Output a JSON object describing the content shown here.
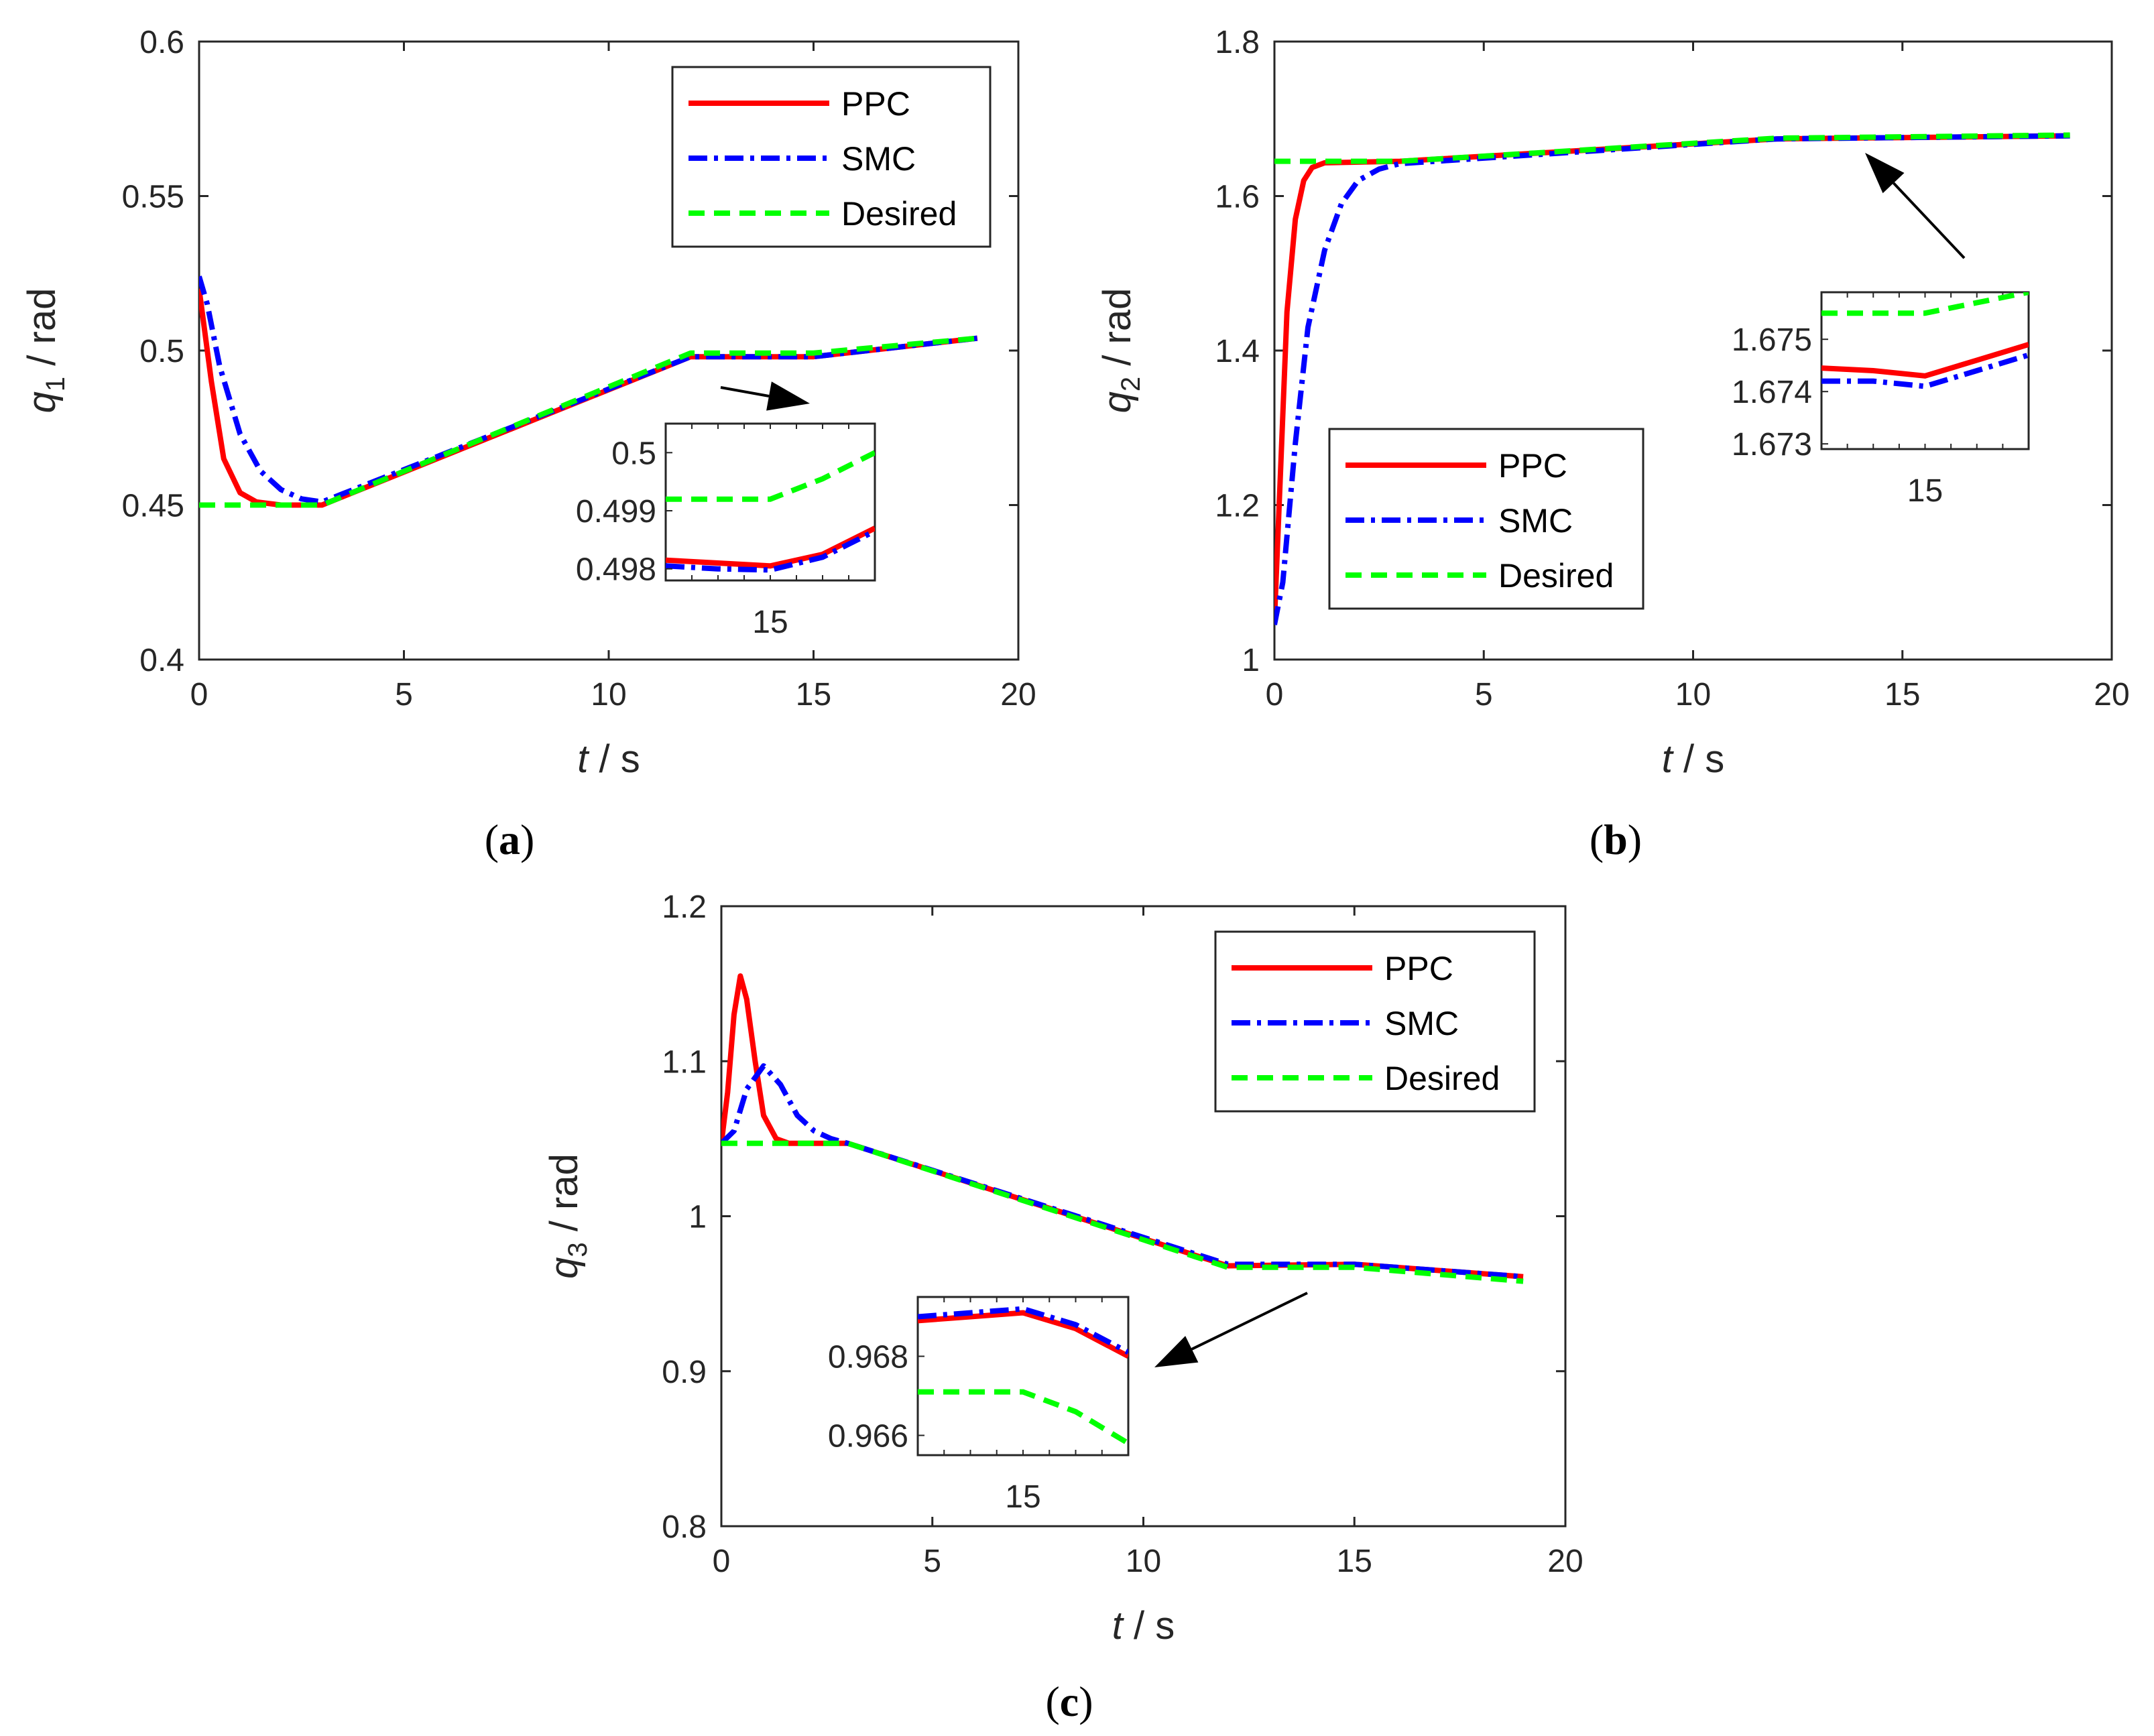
{
  "colors": {
    "PPC": "#ff0000",
    "SMC": "#0000ff",
    "Desired": "#00ff00",
    "axes": "#262626"
  },
  "chart_data": [
    {
      "type": "line",
      "panel_label": "a",
      "xlabel_var": "t",
      "xlabel_unit": "/ s",
      "ylabel_var": "q",
      "ylabel_sub": "1",
      "ylabel_unit": "/ rad",
      "xlim": [
        0,
        20
      ],
      "ylim": [
        0.4,
        0.6
      ],
      "xticks": [
        "0",
        "5",
        "10",
        "15",
        "20"
      ],
      "yticks": [
        "0.4",
        "0.45",
        "0.5",
        "0.55",
        "0.6"
      ],
      "legend_position": "top-right",
      "series": [
        {
          "name": "PPC",
          "x": [
            0,
            0.3,
            0.6,
            1.0,
            1.4,
            2,
            3,
            12,
            15,
            19
          ],
          "y": [
            0.52,
            0.49,
            0.465,
            0.454,
            0.451,
            0.45,
            0.45,
            0.498,
            0.498,
            0.504
          ]
        },
        {
          "name": "SMC",
          "x": [
            0,
            0.2,
            0.5,
            1.0,
            1.5,
            2,
            2.5,
            3,
            12,
            15,
            19
          ],
          "y": [
            0.524,
            0.515,
            0.495,
            0.473,
            0.461,
            0.455,
            0.452,
            0.451,
            0.498,
            0.498,
            0.504
          ]
        },
        {
          "name": "Desired",
          "x": [
            0,
            3,
            12,
            15,
            19
          ],
          "y": [
            0.45,
            0.45,
            0.4992,
            0.4992,
            0.504
          ]
        }
      ],
      "inset": {
        "xtick_label": "15",
        "yticks": [
          "0.498",
          "0.499",
          "0.5"
        ],
        "ylim": [
          0.4978,
          0.5005
        ],
        "series": [
          {
            "name": "PPC",
            "y": [
              0.49815,
              0.4981,
              0.49805,
              0.49825,
              0.4987
            ]
          },
          {
            "name": "SMC",
            "y": [
              0.49805,
              0.498,
              0.49798,
              0.4982,
              0.49865
            ]
          },
          {
            "name": "Desired",
            "y": [
              0.4992,
              0.4992,
              0.4992,
              0.49955,
              0.5
            ]
          }
        ]
      }
    },
    {
      "type": "line",
      "panel_label": "b",
      "xlabel_var": "t",
      "xlabel_unit": "/ s",
      "ylabel_var": "q",
      "ylabel_sub": "2",
      "ylabel_unit": "/ rad",
      "xlim": [
        0,
        20
      ],
      "ylim": [
        1,
        1.8
      ],
      "xticks": [
        "0",
        "5",
        "10",
        "15",
        "20"
      ],
      "yticks": [
        "1",
        "1.2",
        "1.4",
        "1.6",
        "1.8"
      ],
      "legend_position": "bottom-left",
      "series": [
        {
          "name": "PPC",
          "x": [
            0,
            0.15,
            0.3,
            0.5,
            0.7,
            0.9,
            1.2,
            3,
            12,
            19
          ],
          "y": [
            1.05,
            1.25,
            1.45,
            1.57,
            1.62,
            1.637,
            1.643,
            1.645,
            1.674,
            1.678
          ]
        },
        {
          "name": "SMC",
          "x": [
            0,
            0.2,
            0.5,
            0.8,
            1.2,
            1.6,
            2.0,
            2.5,
            3,
            12,
            19
          ],
          "y": [
            1.045,
            1.1,
            1.28,
            1.43,
            1.53,
            1.59,
            1.62,
            1.635,
            1.642,
            1.674,
            1.678
          ]
        },
        {
          "name": "Desired",
          "x": [
            0,
            3,
            12,
            19
          ],
          "y": [
            1.645,
            1.645,
            1.675,
            1.679
          ]
        }
      ],
      "inset": {
        "xtick_label": "15",
        "yticks": [
          "1.673",
          "1.674",
          "1.675"
        ],
        "ylim": [
          1.6729,
          1.6759
        ],
        "series": [
          {
            "name": "PPC",
            "y": [
              1.67445,
              1.6744,
              1.6743,
              1.6746,
              1.6749
            ]
          },
          {
            "name": "SMC",
            "y": [
              1.6742,
              1.6742,
              1.6741,
              1.6744,
              1.6747
            ]
          },
          {
            "name": "Desired",
            "y": [
              1.6755,
              1.6755,
              1.6755,
              1.6757,
              1.6759
            ]
          }
        ]
      }
    },
    {
      "type": "line",
      "panel_label": "c",
      "xlabel_var": "t",
      "xlabel_unit": "/ s",
      "ylabel_var": "q",
      "ylabel_sub": "3",
      "ylabel_unit": "/ rad",
      "xlim": [
        0,
        20
      ],
      "ylim": [
        0.8,
        1.2
      ],
      "xticks": [
        "0",
        "5",
        "10",
        "15",
        "20"
      ],
      "yticks": [
        "0.8",
        "0.9",
        "1",
        "1.1",
        "1.2"
      ],
      "legend_position": "top-right",
      "series": [
        {
          "name": "PPC",
          "x": [
            0,
            0.15,
            0.3,
            0.45,
            0.6,
            0.8,
            1.0,
            1.3,
            1.6,
            3,
            12,
            15,
            19
          ],
          "y": [
            1.047,
            1.08,
            1.13,
            1.155,
            1.14,
            1.1,
            1.065,
            1.05,
            1.047,
            1.047,
            0.968,
            0.969,
            0.961
          ]
        },
        {
          "name": "SMC",
          "x": [
            0,
            0.3,
            0.6,
            1.0,
            1.4,
            1.8,
            2.2,
            2.6,
            3,
            12,
            15,
            19
          ],
          "y": [
            1.047,
            1.055,
            1.082,
            1.097,
            1.085,
            1.065,
            1.055,
            1.05,
            1.047,
            0.969,
            0.969,
            0.961
          ]
        },
        {
          "name": "Desired",
          "x": [
            0,
            3,
            12,
            15,
            19
          ],
          "y": [
            1.047,
            1.047,
            0.967,
            0.967,
            0.958
          ]
        }
      ],
      "inset": {
        "xtick_label": "15",
        "yticks": [
          "0.966",
          "0.968"
        ],
        "ylim": [
          0.9655,
          0.9695
        ],
        "series": [
          {
            "name": "PPC",
            "y": [
              0.9689,
              0.969,
              0.9691,
              0.9687,
              0.968
            ]
          },
          {
            "name": "SMC",
            "y": [
              0.969,
              0.9691,
              0.9692,
              0.9688,
              0.9681
            ]
          },
          {
            "name": "Desired",
            "y": [
              0.9671,
              0.9671,
              0.9671,
              0.9666,
              0.9658
            ]
          }
        ]
      }
    }
  ]
}
